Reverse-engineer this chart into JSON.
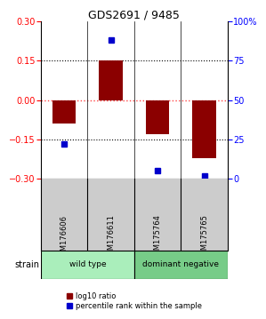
{
  "title": "GDS2691 / 9485",
  "samples": [
    "GSM176606",
    "GSM176611",
    "GSM175764",
    "GSM175765"
  ],
  "log10_ratio": [
    -0.09,
    0.15,
    -0.13,
    -0.22
  ],
  "percentile_rank": [
    22,
    88,
    5,
    2
  ],
  "group_labels": [
    "wild type",
    "dominant negative"
  ],
  "group_colors": [
    "#aaeebb",
    "#77cc88"
  ],
  "group_ranges": [
    [
      0,
      2
    ],
    [
      2,
      4
    ]
  ],
  "ylim": [
    -0.3,
    0.3
  ],
  "yticks_left": [
    -0.3,
    -0.15,
    0,
    0.15,
    0.3
  ],
  "yticks_right": [
    0,
    25,
    50,
    75,
    100
  ],
  "bar_color": "#8B0000",
  "dot_color": "#0000cc",
  "zero_line_color": "#FF4444",
  "grid_line_color": "#000000",
  "background_color": "#ffffff",
  "bar_width": 0.5,
  "sample_box_color": "#cccccc",
  "figsize": [
    3.0,
    3.54
  ],
  "dpi": 100
}
